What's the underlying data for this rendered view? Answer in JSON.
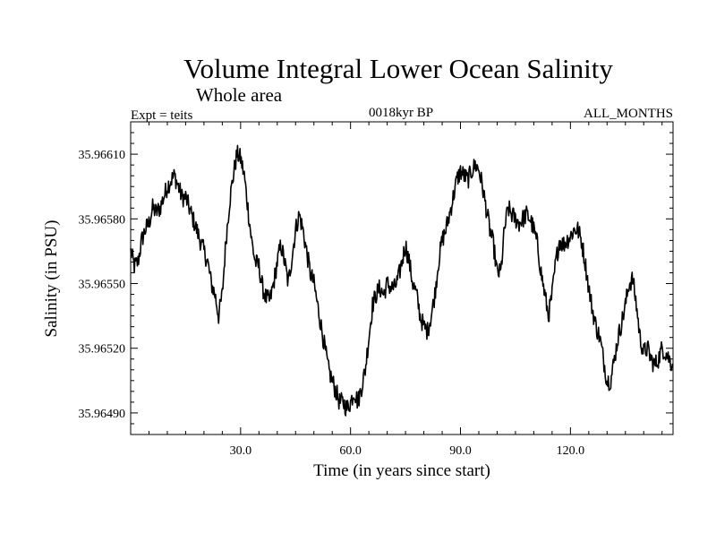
{
  "chart_data": {
    "type": "line",
    "title": "Volume Integral Lower Ocean Salinity",
    "subtitle": "Whole area",
    "annotation_left": "Expt = teits",
    "annotation_center": "0018kyr BP",
    "annotation_right": "ALL_MONTHS",
    "xlabel": "Time (in years since start)",
    "ylabel": "Salinity (in PSU)",
    "xlim": [
      0,
      148
    ],
    "ylim": [
      35.9648,
      35.96625
    ],
    "x_ticks": [
      30,
      60,
      90,
      120
    ],
    "x_tick_labels": [
      "30.0",
      "60.0",
      "90.0",
      "120.0"
    ],
    "y_ticks": [
      35.9649,
      35.9652,
      35.9655,
      35.9658,
      35.9661
    ],
    "y_tick_labels": [
      "35.96490",
      "35.96520",
      "35.96550",
      "35.96580",
      "35.96610"
    ],
    "series": [
      {
        "name": "Salinity",
        "color": "#000000",
        "anchors": [
          [
            0,
            35.96565
          ],
          [
            1,
            35.96558
          ],
          [
            2,
            35.9656
          ],
          [
            3,
            35.9657
          ],
          [
            4,
            35.96575
          ],
          [
            5,
            35.96578
          ],
          [
            6,
            35.96585
          ],
          [
            7,
            35.96583
          ],
          [
            8,
            35.96585
          ],
          [
            9,
            35.9659
          ],
          [
            10,
            35.96595
          ],
          [
            11,
            35.96598
          ],
          [
            12,
            35.966
          ],
          [
            13,
            35.96595
          ],
          [
            14,
            35.9659
          ],
          [
            15,
            35.9659
          ],
          [
            16,
            35.96585
          ],
          [
            17,
            35.9658
          ],
          [
            18,
            35.96575
          ],
          [
            19,
            35.9657
          ],
          [
            20,
            35.96565
          ],
          [
            21,
            35.9656
          ],
          [
            22,
            35.9655
          ],
          [
            23,
            35.96545
          ],
          [
            24,
            35.96535
          ],
          [
            25,
            35.96545
          ],
          [
            26,
            35.9657
          ],
          [
            27,
            35.96588
          ],
          [
            28,
            35.966
          ],
          [
            29,
            35.9661
          ],
          [
            30,
            35.96608
          ],
          [
            31,
            35.966
          ],
          [
            32,
            35.96585
          ],
          [
            33,
            35.9657
          ],
          [
            34,
            35.9656
          ],
          [
            35,
            35.96558
          ],
          [
            36,
            35.96548
          ],
          [
            37,
            35.96543
          ],
          [
            38,
            35.96542
          ],
          [
            39,
            35.9655
          ],
          [
            40,
            35.9656
          ],
          [
            41,
            35.96568
          ],
          [
            42,
            35.9656
          ],
          [
            43,
            35.9655
          ],
          [
            44,
            35.96562
          ],
          [
            45,
            35.96575
          ],
          [
            46,
            35.96582
          ],
          [
            47,
            35.96575
          ],
          [
            48,
            35.96565
          ],
          [
            49,
            35.96555
          ],
          [
            50,
            35.9655
          ],
          [
            51,
            35.9654
          ],
          [
            52,
            35.9653
          ],
          [
            53,
            35.9652
          ],
          [
            54,
            35.9651
          ],
          [
            55,
            35.96505
          ],
          [
            56,
            35.965
          ],
          [
            57,
            35.96495
          ],
          [
            58,
            35.96495
          ],
          [
            59,
            35.96492
          ],
          [
            60,
            35.96495
          ],
          [
            61,
            35.965
          ],
          [
            62,
            35.96495
          ],
          [
            63,
            35.96502
          ],
          [
            64,
            35.9651
          ],
          [
            65,
            35.96525
          ],
          [
            66,
            35.9654
          ],
          [
            67,
            35.96545
          ],
          [
            68,
            35.96548
          ],
          [
            69,
            35.96545
          ],
          [
            70,
            35.9655
          ],
          [
            71,
            35.96548
          ],
          [
            72,
            35.96548
          ],
          [
            73,
            35.96552
          ],
          [
            74,
            35.9656
          ],
          [
            75,
            35.96568
          ],
          [
            76,
            35.9656
          ],
          [
            77,
            35.9655
          ],
          [
            78,
            35.96545
          ],
          [
            79,
            35.96535
          ],
          [
            80,
            35.9653
          ],
          [
            81,
            35.96528
          ],
          [
            82,
            35.96535
          ],
          [
            83,
            35.96545
          ],
          [
            84,
            35.9656
          ],
          [
            85,
            35.9657
          ],
          [
            86,
            35.96575
          ],
          [
            87,
            35.96582
          ],
          [
            88,
            35.9659
          ],
          [
            89,
            35.96598
          ],
          [
            90,
            35.96602
          ],
          [
            91,
            35.966
          ],
          [
            92,
            35.96598
          ],
          [
            93,
            35.96602
          ],
          [
            94,
            35.96605
          ],
          [
            95,
            35.96603
          ],
          [
            96,
            35.96595
          ],
          [
            97,
            35.96585
          ],
          [
            98,
            35.96575
          ],
          [
            99,
            35.96568
          ],
          [
            100,
            35.96555
          ],
          [
            101,
            35.96555
          ],
          [
            102,
            35.96575
          ],
          [
            103,
            35.96585
          ],
          [
            104,
            35.96582
          ],
          [
            105,
            35.9658
          ],
          [
            106,
            35.96578
          ],
          [
            107,
            35.9658
          ],
          [
            108,
            35.96582
          ],
          [
            109,
            35.9658
          ],
          [
            110,
            35.96575
          ],
          [
            111,
            35.96568
          ],
          [
            112,
            35.96555
          ],
          [
            113,
            35.96545
          ],
          [
            114,
            35.96535
          ],
          [
            115,
            35.96545
          ],
          [
            116,
            35.9656
          ],
          [
            117,
            35.9657
          ],
          [
            118,
            35.96568
          ],
          [
            119,
            35.9657
          ],
          [
            120,
            35.96572
          ],
          [
            121,
            35.96575
          ],
          [
            122,
            35.96575
          ],
          [
            123,
            35.9657
          ],
          [
            124,
            35.9656
          ],
          [
            125,
            35.96548
          ],
          [
            126,
            35.96538
          ],
          [
            127,
            35.9653
          ],
          [
            128,
            35.96525
          ],
          [
            129,
            35.96515
          ],
          [
            130,
            35.96505
          ],
          [
            131,
            35.96505
          ],
          [
            132,
            35.96515
          ],
          [
            133,
            35.96525
          ],
          [
            134,
            35.96532
          ],
          [
            135,
            35.9654
          ],
          [
            136,
            35.9655
          ],
          [
            137,
            35.96552
          ],
          [
            138,
            35.9654
          ],
          [
            139,
            35.96525
          ],
          [
            140,
            35.96518
          ],
          [
            141,
            35.9652
          ],
          [
            142,
            35.96515
          ],
          [
            143,
            35.96512
          ],
          [
            144,
            35.96515
          ],
          [
            145,
            35.9652
          ],
          [
            146,
            35.96518
          ],
          [
            147,
            35.96515
          ],
          [
            148,
            35.96512
          ]
        ]
      }
    ]
  }
}
